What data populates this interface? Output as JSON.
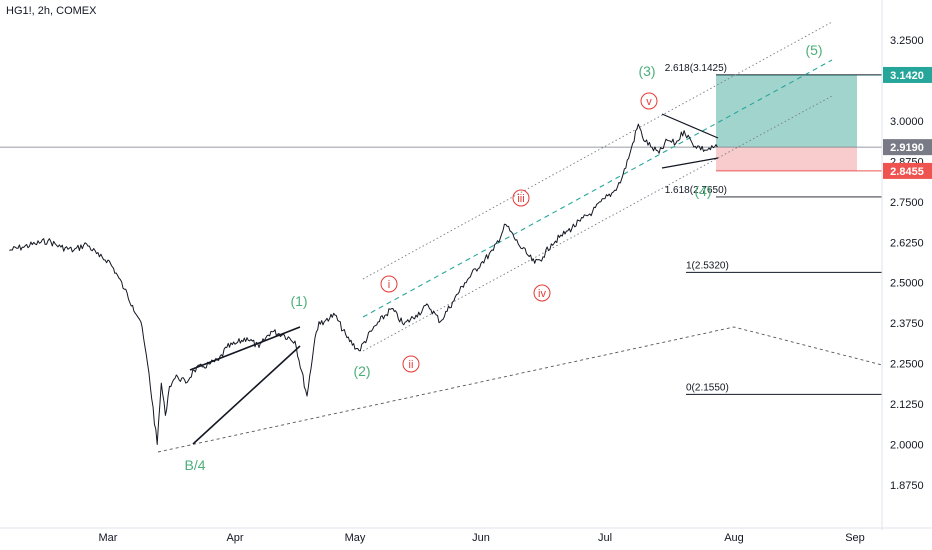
{
  "header": {
    "symbol_line": "HG1!, 2h, COMEX"
  },
  "colors": {
    "price_line": "#131722",
    "green_wave": "#4caf7a",
    "red_wave": "#e53935",
    "target_tag": "#26a69a",
    "current_tag": "#787b86",
    "stop_tag": "#ef5350",
    "target_zone": "#83c5be",
    "stop_zone": "#f7c6c6",
    "channel_mid": "#26a69a"
  },
  "chart_data": {
    "type": "line",
    "title": "",
    "xlabel": "",
    "ylabel": "",
    "x_ticks": [
      "Mar",
      "Apr",
      "May",
      "Jun",
      "Jul",
      "Aug",
      "Sep"
    ],
    "y_ticks": [
      "3.2500",
      "3.0000",
      "2.8750",
      "2.7500",
      "2.6250",
      "2.5000",
      "2.3750",
      "2.2500",
      "2.1250",
      "2.0000",
      "1.8750"
    ],
    "ylim": [
      1.8,
      3.33
    ],
    "grid": false,
    "price_tags": [
      {
        "label": "3.1420",
        "value": 3.142,
        "kind": "target"
      },
      {
        "label": "2.9190",
        "value": 2.919,
        "kind": "current"
      },
      {
        "label": "2.8455",
        "value": 2.8455,
        "kind": "stop"
      }
    ],
    "fib_levels": [
      {
        "label": "2.618(3.1425)",
        "value": 3.1425
      },
      {
        "label": "1.618(2.7650)",
        "value": 2.765
      },
      {
        "label": "1(2.5320)",
        "value": 2.532
      },
      {
        "label": "0(2.1550)",
        "value": 2.155
      }
    ],
    "wave_labels_primary": [
      "B/4",
      "(1)",
      "(2)",
      "(3)",
      "(4)",
      "(5)"
    ],
    "wave_labels_minor": [
      "i",
      "ii",
      "iii",
      "iv",
      "v"
    ],
    "series": [
      {
        "x": [
          "Feb 06",
          "Feb 09",
          "Feb 12",
          "Feb 15",
          "Feb 18",
          "Feb 21",
          "Feb 24",
          "Feb 27",
          "Mar 01",
          "Mar 03",
          "Mar 05",
          "Mar 07",
          "Mar 09",
          "Mar 11",
          "Mar 13",
          "Mar 14",
          "Mar 15",
          "Mar 16",
          "Mar 17",
          "Mar 18",
          "Mar 20",
          "Mar 22",
          "Mar 24",
          "Mar 26",
          "Mar 28",
          "Mar 30",
          "Apr 01",
          "Apr 04",
          "Apr 07",
          "Apr 10",
          "Apr 13",
          "Apr 16",
          "Apr 19",
          "Apr 21",
          "Apr 22",
          "Apr 23",
          "Apr 24",
          "Apr 26",
          "Apr 29",
          "May 02",
          "May 05",
          "May 07",
          "May 10",
          "May 13",
          "May 16",
          "May 19",
          "May 22",
          "May 25",
          "May 28",
          "Jun 01",
          "Jun 04",
          "Jun 07",
          "Jun 10",
          "Jun 12",
          "Jun 14",
          "Jun 16",
          "Jun 18",
          "Jun 20",
          "Jun 22",
          "Jun 25",
          "Jun 28",
          "Jul 01",
          "Jul 03",
          "Jul 05",
          "Jul 07",
          "Jul 09",
          "Jul 10",
          "Jul 12",
          "Jul 14",
          "Jul 16",
          "Jul 18",
          "Jul 20",
          "Jul 22",
          "Jul 25",
          "Jul 28"
        ],
        "values": [
          2.6,
          2.61,
          2.62,
          2.63,
          2.61,
          2.6,
          2.62,
          2.58,
          2.57,
          2.53,
          2.48,
          2.43,
          2.38,
          2.22,
          2.0,
          2.19,
          2.09,
          2.18,
          2.2,
          2.21,
          2.19,
          2.23,
          2.24,
          2.25,
          2.26,
          2.3,
          2.31,
          2.33,
          2.3,
          2.35,
          2.34,
          2.32,
          2.15,
          2.33,
          2.38,
          2.37,
          2.39,
          2.4,
          2.33,
          2.29,
          2.35,
          2.38,
          2.42,
          2.37,
          2.4,
          2.43,
          2.38,
          2.44,
          2.5,
          2.56,
          2.6,
          2.68,
          2.62,
          2.59,
          2.56,
          2.58,
          2.62,
          2.64,
          2.66,
          2.69,
          2.72,
          2.76,
          2.78,
          2.82,
          2.9,
          2.99,
          2.95,
          2.92,
          2.9,
          2.94,
          2.93,
          2.97,
          2.93,
          2.91,
          2.919
        ]
      }
    ]
  }
}
